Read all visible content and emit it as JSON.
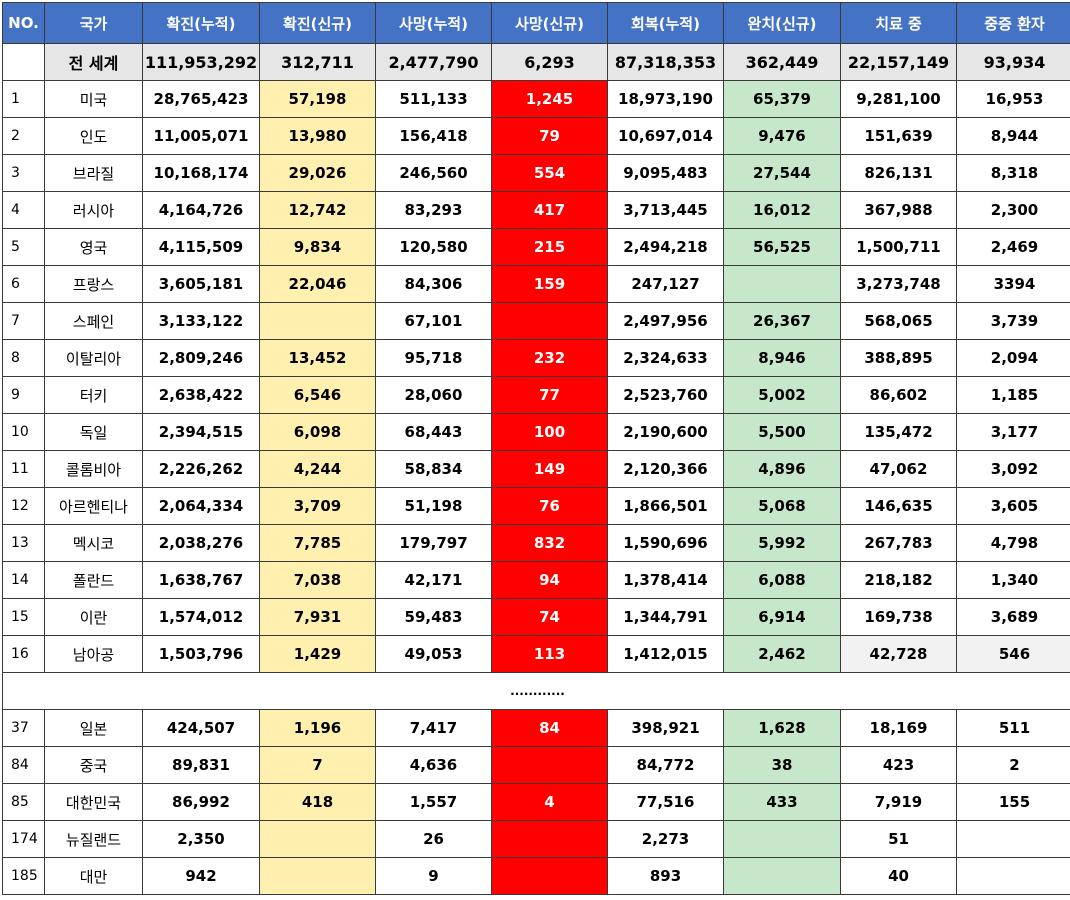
{
  "headers": [
    "NO.",
    "국가",
    "확진(누적)",
    "확진(신규)",
    "사망(누적)",
    "사망(신규)",
    "회복(누적)",
    "완치(신규)",
    "치료 중",
    "중증 환자"
  ],
  "world": {
    "no": "",
    "country": "전 세계",
    "cells": [
      "111,953,292",
      "312,711",
      "2,477,790",
      "6,293",
      "87,318,353",
      "362,449",
      "22,157,149",
      "93,934"
    ]
  },
  "ellipsis": "............",
  "top_rows": [
    {
      "no": "1",
      "country": "미국",
      "cells": [
        "28,765,423",
        "57,198",
        "511,133",
        "1,245",
        "18,973,190",
        "65,379",
        "9,281,100",
        "16,953"
      ]
    },
    {
      "no": "2",
      "country": "인도",
      "cells": [
        "11,005,071",
        "13,980",
        "156,418",
        "79",
        "10,697,014",
        "9,476",
        "151,639",
        "8,944"
      ]
    },
    {
      "no": "3",
      "country": "브라질",
      "cells": [
        "10,168,174",
        "29,026",
        "246,560",
        "554",
        "9,095,483",
        "27,544",
        "826,131",
        "8,318"
      ]
    },
    {
      "no": "4",
      "country": "러시아",
      "cells": [
        "4,164,726",
        "12,742",
        "83,293",
        "417",
        "3,713,445",
        "16,012",
        "367,988",
        "2,300"
      ]
    },
    {
      "no": "5",
      "country": "영국",
      "cells": [
        "4,115,509",
        "9,834",
        "120,580",
        "215",
        "2,494,218",
        "56,525",
        "1,500,711",
        "2,469"
      ]
    },
    {
      "no": "6",
      "country": "프랑스",
      "cells": [
        "3,605,181",
        "22,046",
        "84,306",
        "159",
        "247,127",
        "",
        "3,273,748",
        "3394"
      ]
    },
    {
      "no": "7",
      "country": "스페인",
      "cells": [
        "3,133,122",
        "",
        "67,101",
        "",
        "2,497,956",
        "26,367",
        "568,065",
        "3,739"
      ]
    },
    {
      "no": "8",
      "country": "이탈리아",
      "cells": [
        "2,809,246",
        "13,452",
        "95,718",
        "232",
        "2,324,633",
        "8,946",
        "388,895",
        "2,094"
      ]
    },
    {
      "no": "9",
      "country": "터키",
      "cells": [
        "2,638,422",
        "6,546",
        "28,060",
        "77",
        "2,523,760",
        "5,002",
        "86,602",
        "1,185"
      ]
    },
    {
      "no": "10",
      "country": "독일",
      "cells": [
        "2,394,515",
        "6,098",
        "68,443",
        "100",
        "2,190,600",
        "5,500",
        "135,472",
        "3,177"
      ]
    },
    {
      "no": "11",
      "country": "콜롬비아",
      "cells": [
        "2,226,262",
        "4,244",
        "58,834",
        "149",
        "2,120,366",
        "4,896",
        "47,062",
        "3,092"
      ]
    },
    {
      "no": "12",
      "country": "아르헨티나",
      "cells": [
        "2,064,334",
        "3,709",
        "51,198",
        "76",
        "1,866,501",
        "5,068",
        "146,635",
        "3,605"
      ]
    },
    {
      "no": "13",
      "country": "멕시코",
      "cells": [
        "2,038,276",
        "7,785",
        "179,797",
        "832",
        "1,590,696",
        "5,992",
        "267,783",
        "4,798"
      ]
    },
    {
      "no": "14",
      "country": "폴란드",
      "cells": [
        "1,638,767",
        "7,038",
        "42,171",
        "94",
        "1,378,414",
        "6,088",
        "218,182",
        "1,340"
      ]
    },
    {
      "no": "15",
      "country": "이란",
      "cells": [
        "1,574,012",
        "7,931",
        "59,483",
        "74",
        "1,344,791",
        "6,914",
        "169,738",
        "3,689"
      ]
    },
    {
      "no": "16",
      "country": "남아공",
      "cells": [
        "1,503,796",
        "1,429",
        "49,053",
        "113",
        "1,412,015",
        "2,462",
        "42,728",
        "546"
      ]
    }
  ],
  "bottom_rows": [
    {
      "no": "37",
      "country": "일본",
      "cells": [
        "424,507",
        "1,196",
        "7,417",
        "84",
        "398,921",
        "1,628",
        "18,169",
        "511"
      ]
    },
    {
      "no": "84",
      "country": "중국",
      "cells": [
        "89,831",
        "7",
        "4,636",
        "",
        "84,772",
        "38",
        "423",
        "2"
      ]
    },
    {
      "no": "85",
      "country": "대한민국",
      "cells": [
        "86,992",
        "418",
        "1,557",
        "4",
        "77,516",
        "433",
        "7,919",
        "155"
      ]
    },
    {
      "no": "174",
      "country": "뉴질랜드",
      "cells": [
        "2,350",
        "",
        "26",
        "",
        "2,273",
        "",
        "51",
        ""
      ]
    },
    {
      "no": "185",
      "country": "대만",
      "cells": [
        "942",
        "",
        "9",
        "",
        "893",
        "",
        "40",
        ""
      ]
    }
  ],
  "colors": {
    "header": "#4472c4",
    "new_cases": "#fff0b0",
    "new_deaths": "#ff0000",
    "new_recovered": "#c6e7c9",
    "world_row": "#e7e6e6"
  }
}
